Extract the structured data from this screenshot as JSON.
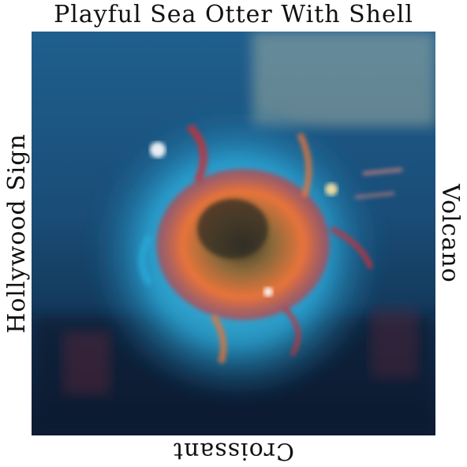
{
  "labels": {
    "top": "Playful Sea Otter With Shell",
    "bottom": "Croissant",
    "left": "Hollywood Sign",
    "right": "Volcano"
  },
  "image": {
    "subject": "abstract-otter-shell-artwork",
    "colors": {
      "deep_blue": "#0b2a4a",
      "cyan": "#2aa8d8",
      "teal": "#3b8f8f",
      "orange": "#e8743a",
      "red": "#c8323a",
      "cream": "#e6dcb0"
    }
  }
}
